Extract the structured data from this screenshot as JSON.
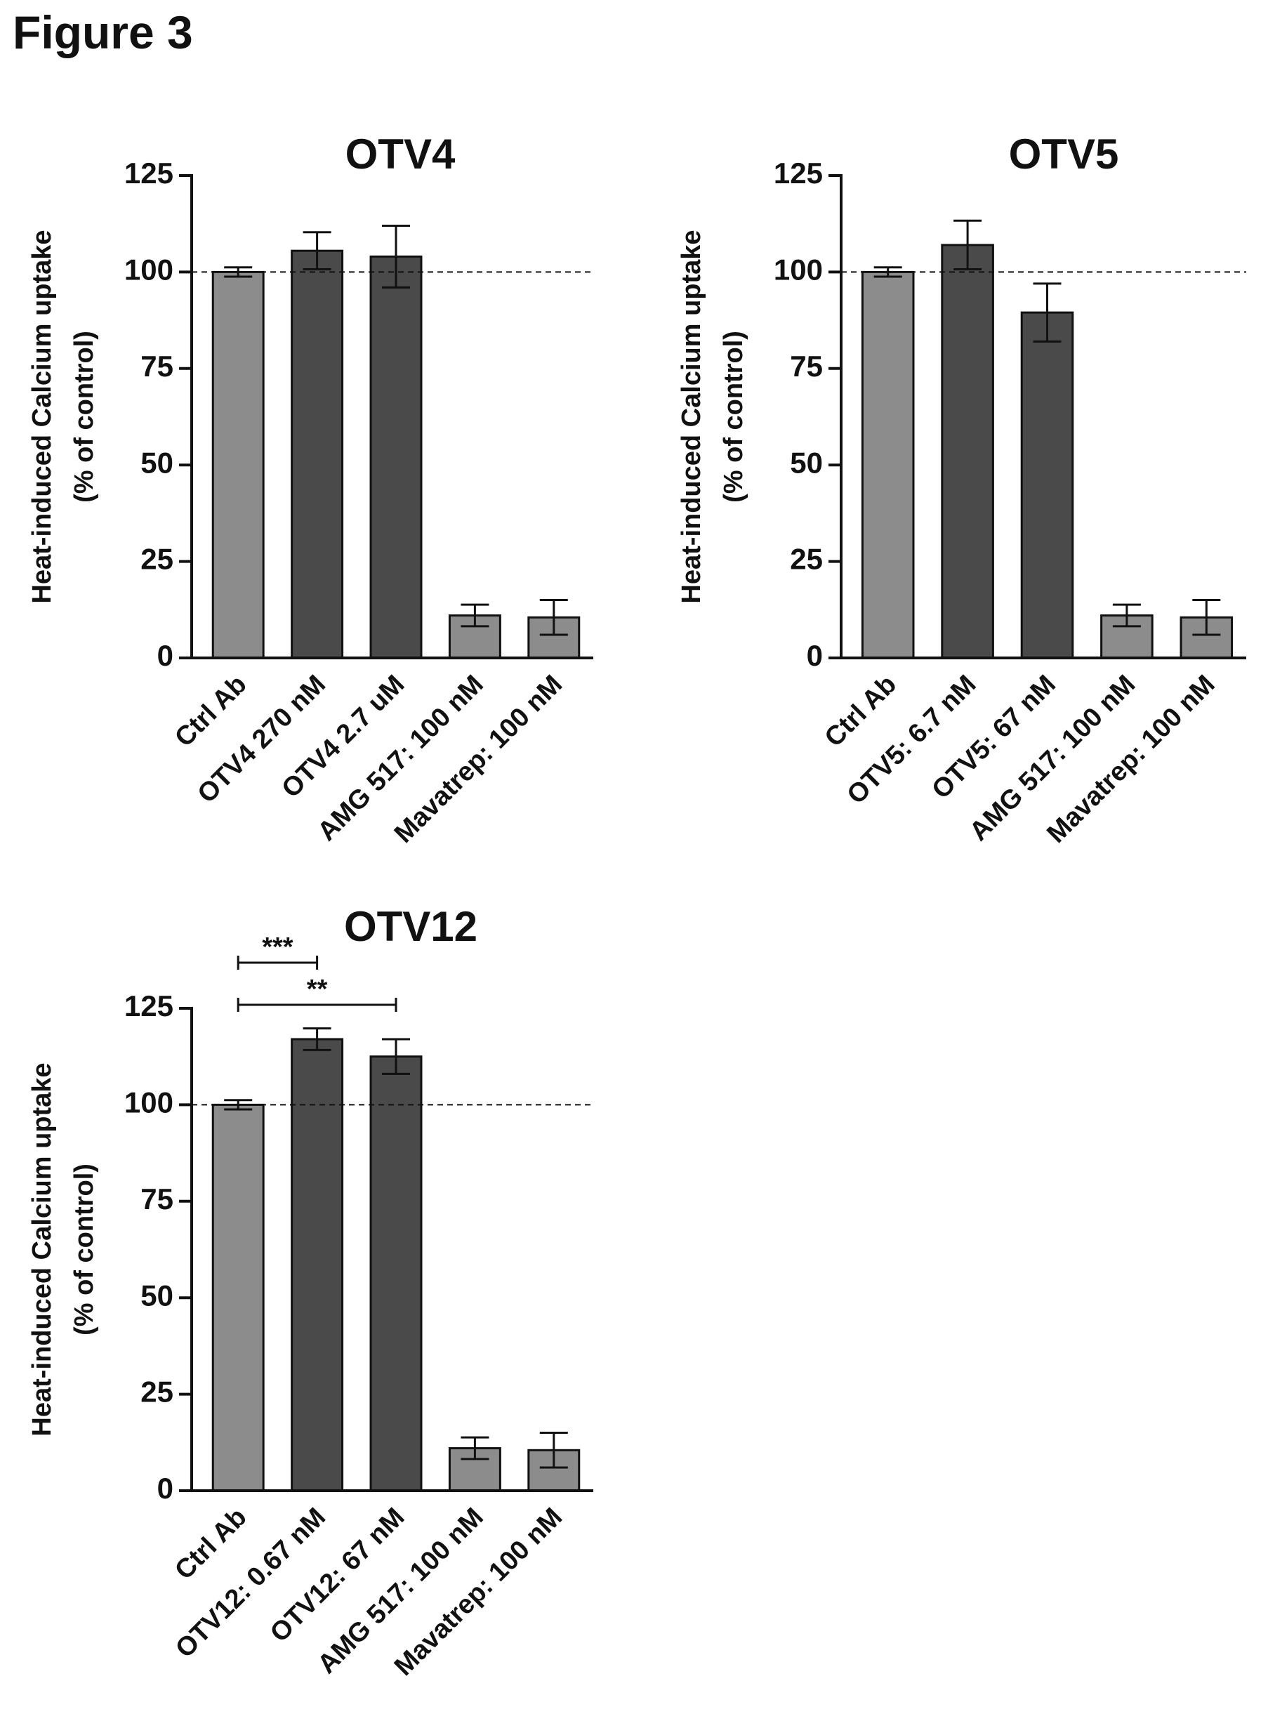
{
  "figure_title": "Figure 3",
  "colors": {
    "light_bar": "#8c8c8c",
    "dark_bar": "#4a4a4a",
    "axis": "#111111"
  },
  "chart_data": [
    {
      "type": "bar",
      "title": "OTV4",
      "ylabel_line1": "Heat-induced Calcium uptake",
      "ylabel_line2": "(% of control)",
      "ylim": [
        0,
        125
      ],
      "yticks": [
        0,
        25,
        50,
        75,
        100,
        125
      ],
      "reference_line": 100,
      "categories": [
        "Ctrl Ab",
        "OTV4 270 nM",
        "OTV4 2.7 uM",
        "AMG 517: 100 nM",
        "Mavatrep: 100 nM"
      ],
      "values": [
        100,
        105.5,
        104,
        11,
        10.5
      ],
      "errors": [
        1.2,
        4.8,
        8,
        2.8,
        4.5
      ],
      "shades": [
        "light",
        "dark",
        "dark",
        "light",
        "light"
      ],
      "significance": []
    },
    {
      "type": "bar",
      "title": "OTV5",
      "ylabel_line1": "Heat-induced Calcium uptake",
      "ylabel_line2": "(% of control)",
      "ylim": [
        0,
        125
      ],
      "yticks": [
        0,
        25,
        50,
        75,
        100,
        125
      ],
      "reference_line": 100,
      "categories": [
        "Ctrl Ab",
        "OTV5: 6.7 nM",
        "OTV5: 67 nM",
        "AMG 517: 100 nM",
        "Mavatrep: 100 nM"
      ],
      "values": [
        100,
        107,
        89.5,
        11,
        10.5
      ],
      "errors": [
        1.2,
        6.3,
        7.5,
        2.8,
        4.5
      ],
      "shades": [
        "light",
        "dark",
        "dark",
        "light",
        "light"
      ],
      "significance": []
    },
    {
      "type": "bar",
      "title": "OTV12",
      "ylabel_line1": "Heat-induced Calcium uptake",
      "ylabel_line2": "(% of control)",
      "ylim": [
        0,
        125
      ],
      "yticks": [
        0,
        25,
        50,
        75,
        100,
        125
      ],
      "reference_line": 100,
      "categories": [
        "Ctrl Ab",
        "OTV12: 0.67 nM",
        "OTV12: 67 nM",
        "AMG 517: 100 nM",
        "Mavatrep: 100 nM"
      ],
      "values": [
        100,
        117,
        112.5,
        11,
        10.5
      ],
      "errors": [
        1.2,
        2.8,
        4.5,
        2.8,
        4.5
      ],
      "shades": [
        "light",
        "dark",
        "dark",
        "light",
        "light"
      ],
      "significance": [
        {
          "from": 0,
          "to": 1,
          "label": "***"
        },
        {
          "from": 0,
          "to": 2,
          "label": "**"
        }
      ]
    }
  ]
}
